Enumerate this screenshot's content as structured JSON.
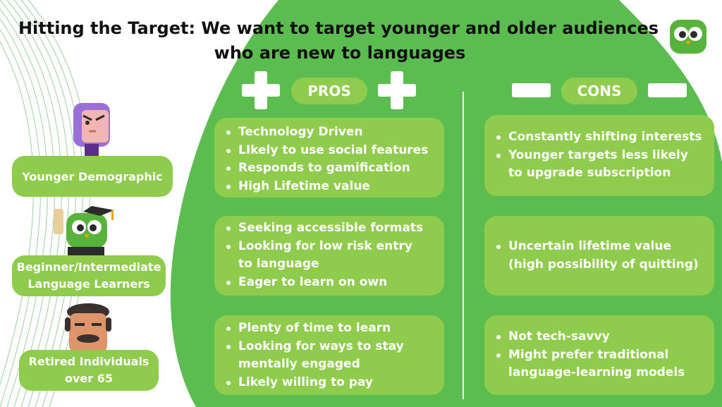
{
  "title": {
    "line1": "Hitting the Target: We want to target younger and older audiences",
    "line2": "who are new to languages"
  },
  "pros": {
    "heading": "PROS",
    "cards": [
      [
        "Technology Driven",
        "LIkely to use social features",
        "Responds to gamification",
        "High Lifetime value"
      ],
      [
        "Seeking accessible formats",
        "Looking for low risk entry to language",
        "Eager to learn on own"
      ],
      [
        "Plenty of time to learn",
        "Looking for ways to stay mentally engaged",
        "Likely willing to pay"
      ]
    ]
  },
  "cons": {
    "heading": "CONS",
    "cards": [
      [
        "Constantly shifting interests",
        "Younger targets less likely to upgrade subscription"
      ],
      [
        "Uncertain lifetime value (high possibility of quitting)"
      ],
      [
        "Not tech-savvy",
        "Might prefer traditional language-learning models"
      ]
    ]
  },
  "audiences": [
    {
      "label": "Younger Demographic"
    },
    {
      "label": "Beginner/Intermediate Language Learners"
    },
    {
      "label": "Retired Individuals over 65"
    }
  ],
  "colors": {
    "background_green": "#5bbd50",
    "card_green": "#8fcb4c",
    "text_white": "#ffffff",
    "title_text": "#111111"
  },
  "icons": [
    "owl-logo-icon",
    "girl-avatar-icon",
    "graduate-owl-icon",
    "retired-man-icon",
    "plus-icon",
    "minus-icon"
  ]
}
